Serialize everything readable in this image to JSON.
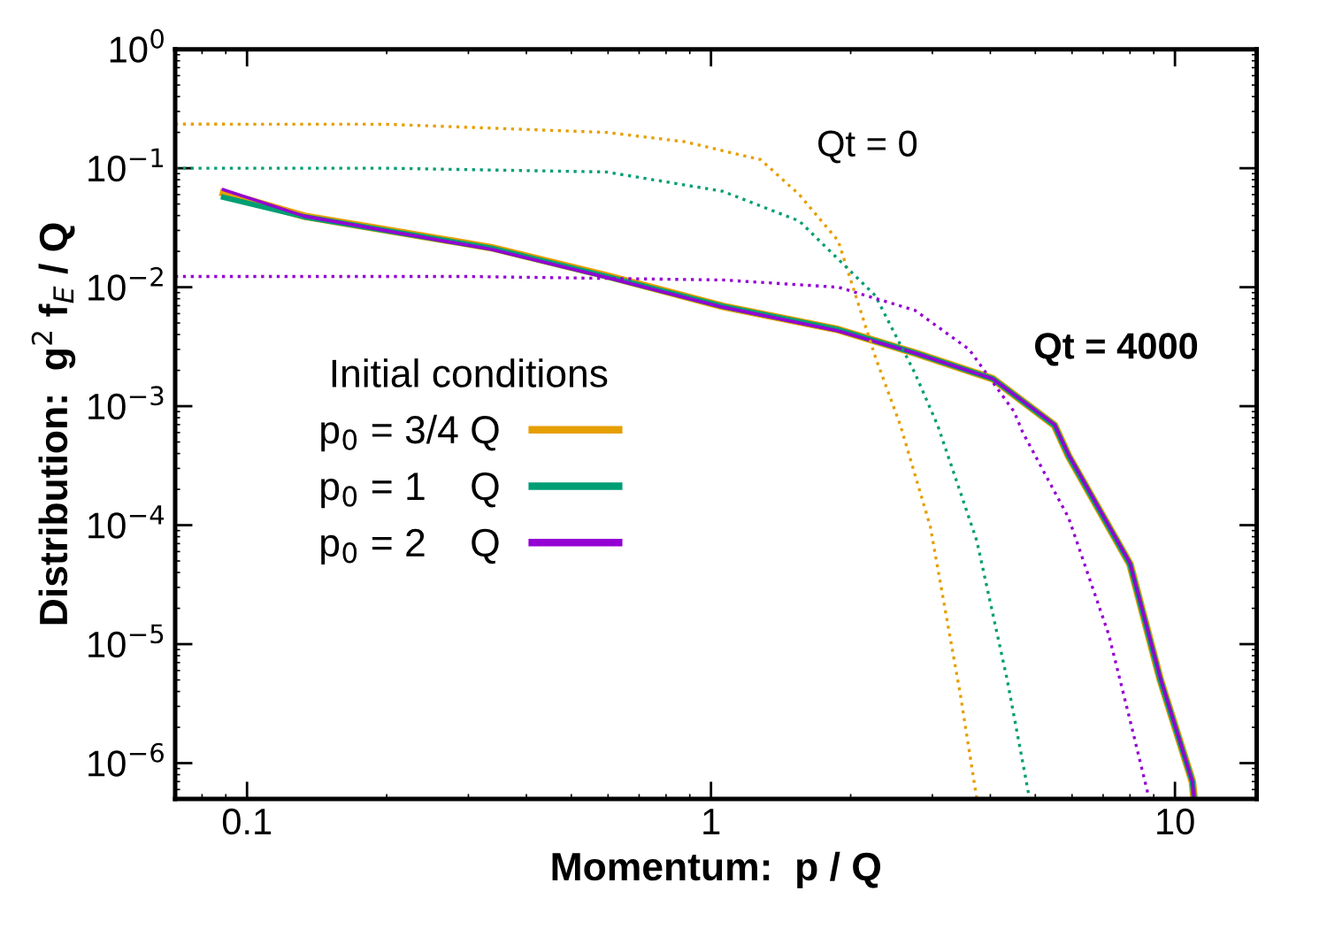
{
  "chart_data": {
    "type": "line",
    "xlabel": "Momentum:  p / Q",
    "ylabel": "Distribution:  g$^{2}$ f$_{E}$ / Q",
    "log": "xy",
    "xlim": [
      0.07,
      15
    ],
    "ylim": [
      5e-07,
      1
    ],
    "xticks": [
      0.1,
      1,
      10
    ],
    "yticks": [
      {
        "value": 1,
        "label": "10$^{0}$"
      },
      {
        "value": 0.1,
        "label": "10$^{−1}$"
      },
      {
        "value": 0.01,
        "label": "10$^{−2}$"
      },
      {
        "value": 0.001,
        "label": "10$^{−3}$"
      },
      {
        "value": 0.0001,
        "label": "10$^{−4}$"
      },
      {
        "value": 1e-05,
        "label": "10$^{−5}$"
      },
      {
        "value": 1e-06,
        "label": "10$^{−6}$"
      }
    ],
    "grid": false,
    "legend": "left",
    "legend_title": "Initial conditions",
    "marker": "none",
    "annotations": [
      "Qt = 0",
      "Qt = 4000"
    ],
    "series": [
      {
        "name": "p$_{0}$ = 3/4 Q",
        "color": "#e69f00",
        "line_style": "solid",
        "x": [
          0.089,
          0.133,
          0.336,
          0.595,
          1.06,
          1.88,
          2.75,
          4.05,
          5.5,
          5.9,
          8.0,
          9.3,
          10.9,
          11.0
        ],
        "values": [
          0.062,
          0.0395,
          0.0215,
          0.0125,
          0.0069,
          0.0044,
          0.0028,
          0.0017,
          0.00069,
          0.00038,
          4.7e-05,
          5e-06,
          7e-07,
          5e-07
        ]
      },
      {
        "name": "p$_{0}$ = 1    Q",
        "color": "#009e73",
        "line_style": "solid",
        "x": [
          0.089,
          0.133,
          0.336,
          0.595,
          1.06,
          1.88,
          2.75,
          4.05,
          5.5,
          5.9,
          8.0,
          9.3,
          10.9,
          11.0
        ],
        "values": [
          0.057,
          0.039,
          0.0213,
          0.0123,
          0.0069,
          0.0044,
          0.0028,
          0.0017,
          0.00069,
          0.00038,
          4.7e-05,
          5e-06,
          7e-07,
          5e-07
        ]
      },
      {
        "name": "p$_{0}$ = 2    Q",
        "color": "#9400d3",
        "line_style": "solid",
        "x": [
          0.089,
          0.133,
          0.336,
          0.595,
          1.06,
          1.88,
          2.75,
          4.05,
          5.5,
          5.9,
          8.0,
          9.3,
          10.9,
          11.0
        ],
        "values": [
          0.066,
          0.0395,
          0.0208,
          0.0121,
          0.0068,
          0.0043,
          0.0028,
          0.0017,
          0.0007,
          0.00039,
          4.8e-05,
          5.2e-06,
          7e-07,
          5e-07
        ]
      },
      {
        "color": "#e69f00",
        "line_style": "dotted",
        "x": [
          0.07,
          0.2,
          0.595,
          0.877,
          1.28,
          1.55,
          1.88,
          2.26,
          2.56,
          2.97,
          3.45,
          3.74
        ],
        "values": [
          0.235,
          0.234,
          0.2,
          0.167,
          0.118,
          0.06,
          0.0245,
          0.0026,
          0.00069,
          9.7e-05,
          3.7e-06,
          5e-07
        ]
      },
      {
        "color": "#009e73",
        "line_style": "dotted",
        "x": [
          0.07,
          0.2,
          0.595,
          1.06,
          1.55,
          2.26,
          2.75,
          3.08,
          3.74,
          4.35,
          4.86
        ],
        "values": [
          0.1,
          0.1,
          0.093,
          0.064,
          0.036,
          0.0085,
          0.0019,
          0.00069,
          7.4e-05,
          5e-06,
          5e-07
        ]
      },
      {
        "color": "#9400d3",
        "line_style": "dotted",
        "x": [
          0.07,
          0.3,
          1.06,
          1.88,
          2.75,
          3.6,
          4.5,
          4.7,
          5.9,
          7.2,
          8.0,
          8.8
        ],
        "values": [
          0.0123,
          0.0123,
          0.0115,
          0.01,
          0.0064,
          0.003,
          0.0009,
          0.0006,
          0.000115,
          1.2e-05,
          2.3e-06,
          5e-07
        ]
      }
    ]
  }
}
